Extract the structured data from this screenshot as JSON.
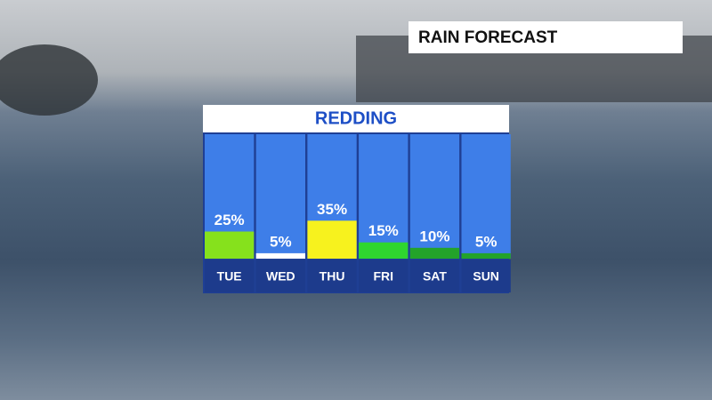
{
  "chart_data": {
    "type": "bar",
    "title": "RAIN FORECAST",
    "subtitle": "REDDING",
    "categories": [
      "TUE",
      "WED",
      "THU",
      "FRI",
      "SAT",
      "SUN"
    ],
    "values": [
      25,
      5,
      35,
      15,
      10,
      5
    ],
    "value_labels": [
      "25%",
      "5%",
      "35%",
      "15%",
      "10%",
      "5%"
    ],
    "colors": [
      "#86e11c",
      "#ffffff",
      "#f7f21e",
      "#2fd62f",
      "#23a32a",
      "#23a32a"
    ]
  }
}
